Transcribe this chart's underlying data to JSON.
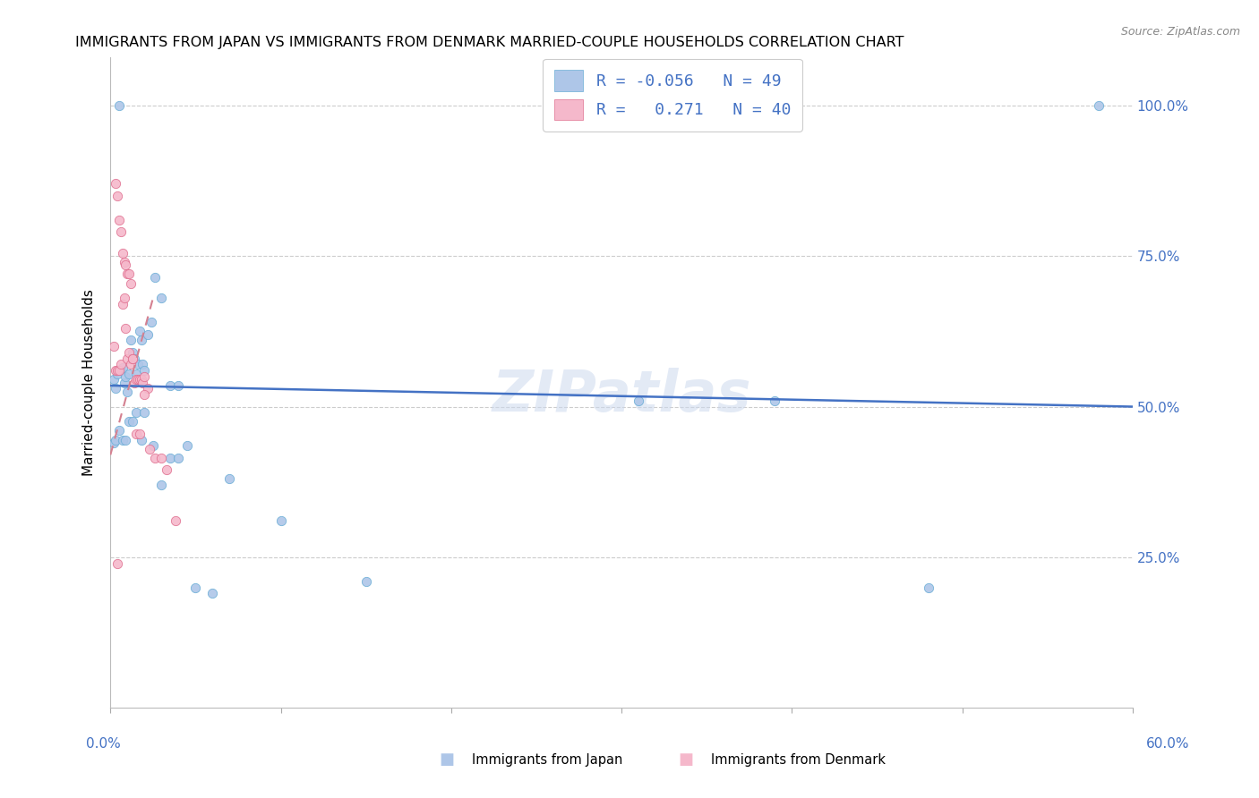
{
  "title": "IMMIGRANTS FROM JAPAN VS IMMIGRANTS FROM DENMARK MARRIED-COUPLE HOUSEHOLDS CORRELATION CHART",
  "source": "Source: ZipAtlas.com",
  "ylabel": "Married-couple Households",
  "xlim": [
    0.0,
    0.6
  ],
  "ylim": [
    0.0,
    1.05
  ],
  "japan_color": "#aec6e8",
  "japan_edge_color": "#6baed6",
  "denmark_color": "#f5b8cb",
  "denmark_edge_color": "#e07090",
  "japan_R": -0.056,
  "japan_N": 49,
  "denmark_R": 0.271,
  "denmark_N": 40,
  "trend_japan_color": "#4472c4",
  "trend_denmark_color": "#d48090",
  "watermark": "ZIPatlas",
  "right_tick_color": "#4472c4",
  "japan_x": [
    0.002,
    0.003,
    0.004,
    0.005,
    0.006,
    0.007,
    0.008,
    0.009,
    0.01,
    0.011,
    0.012,
    0.013,
    0.014,
    0.015,
    0.016,
    0.017,
    0.018,
    0.019,
    0.02,
    0.022,
    0.024,
    0.026,
    0.03,
    0.035,
    0.04,
    0.002,
    0.003,
    0.005,
    0.007,
    0.009,
    0.011,
    0.013,
    0.015,
    0.018,
    0.02,
    0.025,
    0.03,
    0.035,
    0.04,
    0.045,
    0.05,
    0.06,
    0.07,
    0.1,
    0.15,
    0.31,
    0.39,
    0.48,
    0.58
  ],
  "japan_y": [
    0.545,
    0.53,
    0.555,
    1.0,
    0.56,
    0.565,
    0.54,
    0.55,
    0.525,
    0.555,
    0.61,
    0.59,
    0.58,
    0.555,
    0.57,
    0.625,
    0.61,
    0.57,
    0.56,
    0.62,
    0.64,
    0.715,
    0.68,
    0.535,
    0.535,
    0.44,
    0.445,
    0.46,
    0.445,
    0.445,
    0.475,
    0.475,
    0.49,
    0.445,
    0.49,
    0.435,
    0.37,
    0.415,
    0.415,
    0.435,
    0.2,
    0.19,
    0.38,
    0.31,
    0.21,
    0.51,
    0.51,
    0.2,
    1.0
  ],
  "denmark_x": [
    0.002,
    0.003,
    0.004,
    0.005,
    0.006,
    0.007,
    0.008,
    0.009,
    0.01,
    0.011,
    0.012,
    0.013,
    0.014,
    0.015,
    0.016,
    0.017,
    0.018,
    0.019,
    0.02,
    0.022,
    0.003,
    0.004,
    0.005,
    0.006,
    0.007,
    0.008,
    0.009,
    0.01,
    0.011,
    0.012,
    0.013,
    0.015,
    0.017,
    0.02,
    0.023,
    0.026,
    0.03,
    0.033,
    0.038,
    0.004
  ],
  "denmark_y": [
    0.6,
    0.56,
    0.56,
    0.56,
    0.57,
    0.67,
    0.68,
    0.63,
    0.58,
    0.59,
    0.57,
    0.58,
    0.54,
    0.545,
    0.545,
    0.545,
    0.545,
    0.54,
    0.55,
    0.53,
    0.87,
    0.85,
    0.81,
    0.79,
    0.755,
    0.74,
    0.735,
    0.72,
    0.72,
    0.705,
    0.58,
    0.455,
    0.455,
    0.52,
    0.43,
    0.415,
    0.415,
    0.395,
    0.31,
    0.24
  ]
}
